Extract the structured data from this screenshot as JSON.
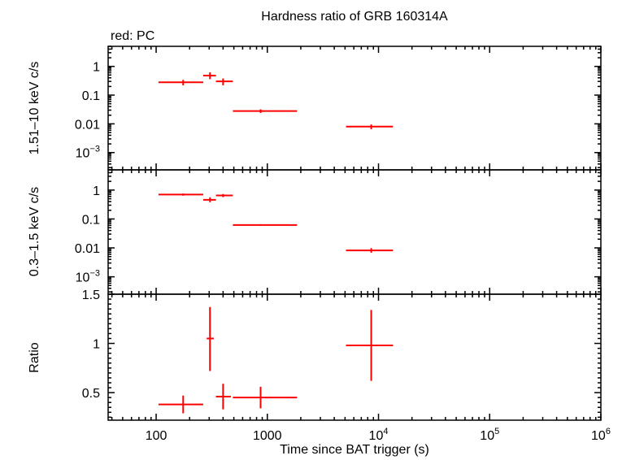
{
  "chart_data": {
    "type": "scatter",
    "title": "Hardness ratio of GRB 160314A",
    "series_note": "red: PC",
    "xlabel": "Time since BAT trigger (s)",
    "xscale": "log",
    "xlim": [
      37,
      1000000
    ],
    "x_ticks": [
      "100",
      "1000",
      "10^4",
      "10^5",
      "10^6"
    ],
    "colors": {
      "series": "#ff0000",
      "axes": "#000000"
    },
    "panels": [
      {
        "id": "hard",
        "ylabel": "1.51–10 keV c/s",
        "yscale": "log",
        "ylim": [
          0.00025,
          5
        ],
        "y_ticks": [
          "1",
          "0.1",
          "0.01",
          "10^-3"
        ],
        "points": [
          {
            "x": 175,
            "xlo": 105,
            "xhi": 265,
            "y": 0.28,
            "ylo": 0.22,
            "yhi": 0.34
          },
          {
            "x": 305,
            "xlo": 265,
            "xhi": 345,
            "y": 0.48,
            "ylo": 0.36,
            "yhi": 0.62
          },
          {
            "x": 400,
            "xlo": 345,
            "xhi": 490,
            "y": 0.3,
            "ylo": 0.22,
            "yhi": 0.38
          },
          {
            "x": 870,
            "xlo": 490,
            "xhi": 1850,
            "y": 0.028,
            "ylo": 0.024,
            "yhi": 0.032
          },
          {
            "x": 8600,
            "xlo": 5100,
            "xhi": 13500,
            "y": 0.008,
            "ylo": 0.0065,
            "yhi": 0.0095
          }
        ]
      },
      {
        "id": "soft",
        "ylabel": "0.3–1.5 keV c/s",
        "yscale": "log",
        "ylim": [
          0.00025,
          5
        ],
        "y_ticks": [
          "1",
          "0.1",
          "0.01",
          "10^-3"
        ],
        "points": [
          {
            "x": 175,
            "xlo": 105,
            "xhi": 265,
            "y": 0.7,
            "ylo": 0.64,
            "yhi": 0.76
          },
          {
            "x": 305,
            "xlo": 265,
            "xhi": 345,
            "y": 0.46,
            "ylo": 0.38,
            "yhi": 0.56
          },
          {
            "x": 400,
            "xlo": 345,
            "xhi": 490,
            "y": 0.65,
            "ylo": 0.57,
            "yhi": 0.73
          },
          {
            "x": 870,
            "xlo": 490,
            "xhi": 1850,
            "y": 0.062,
            "ylo": 0.058,
            "yhi": 0.066
          },
          {
            "x": 8600,
            "xlo": 5100,
            "xhi": 13500,
            "y": 0.0082,
            "ylo": 0.0068,
            "yhi": 0.0098
          }
        ]
      },
      {
        "id": "ratio",
        "ylabel": "Ratio",
        "yscale": "linear",
        "ylim": [
          0.22,
          1.5
        ],
        "y_ticks": [
          "0.5",
          "1",
          "1.5"
        ],
        "points": [
          {
            "x": 175,
            "xlo": 105,
            "xhi": 265,
            "y": 0.38,
            "ylo": 0.29,
            "yhi": 0.47
          },
          {
            "x": 305,
            "xlo": 285,
            "xhi": 330,
            "y": 1.05,
            "ylo": 0.72,
            "yhi": 1.37
          },
          {
            "x": 400,
            "xlo": 345,
            "xhi": 470,
            "y": 0.46,
            "ylo": 0.33,
            "yhi": 0.59
          },
          {
            "x": 870,
            "xlo": 490,
            "xhi": 1850,
            "y": 0.45,
            "ylo": 0.34,
            "yhi": 0.56
          },
          {
            "x": 8600,
            "xlo": 5100,
            "xhi": 13500,
            "y": 0.98,
            "ylo": 0.62,
            "yhi": 1.34
          }
        ]
      }
    ]
  }
}
